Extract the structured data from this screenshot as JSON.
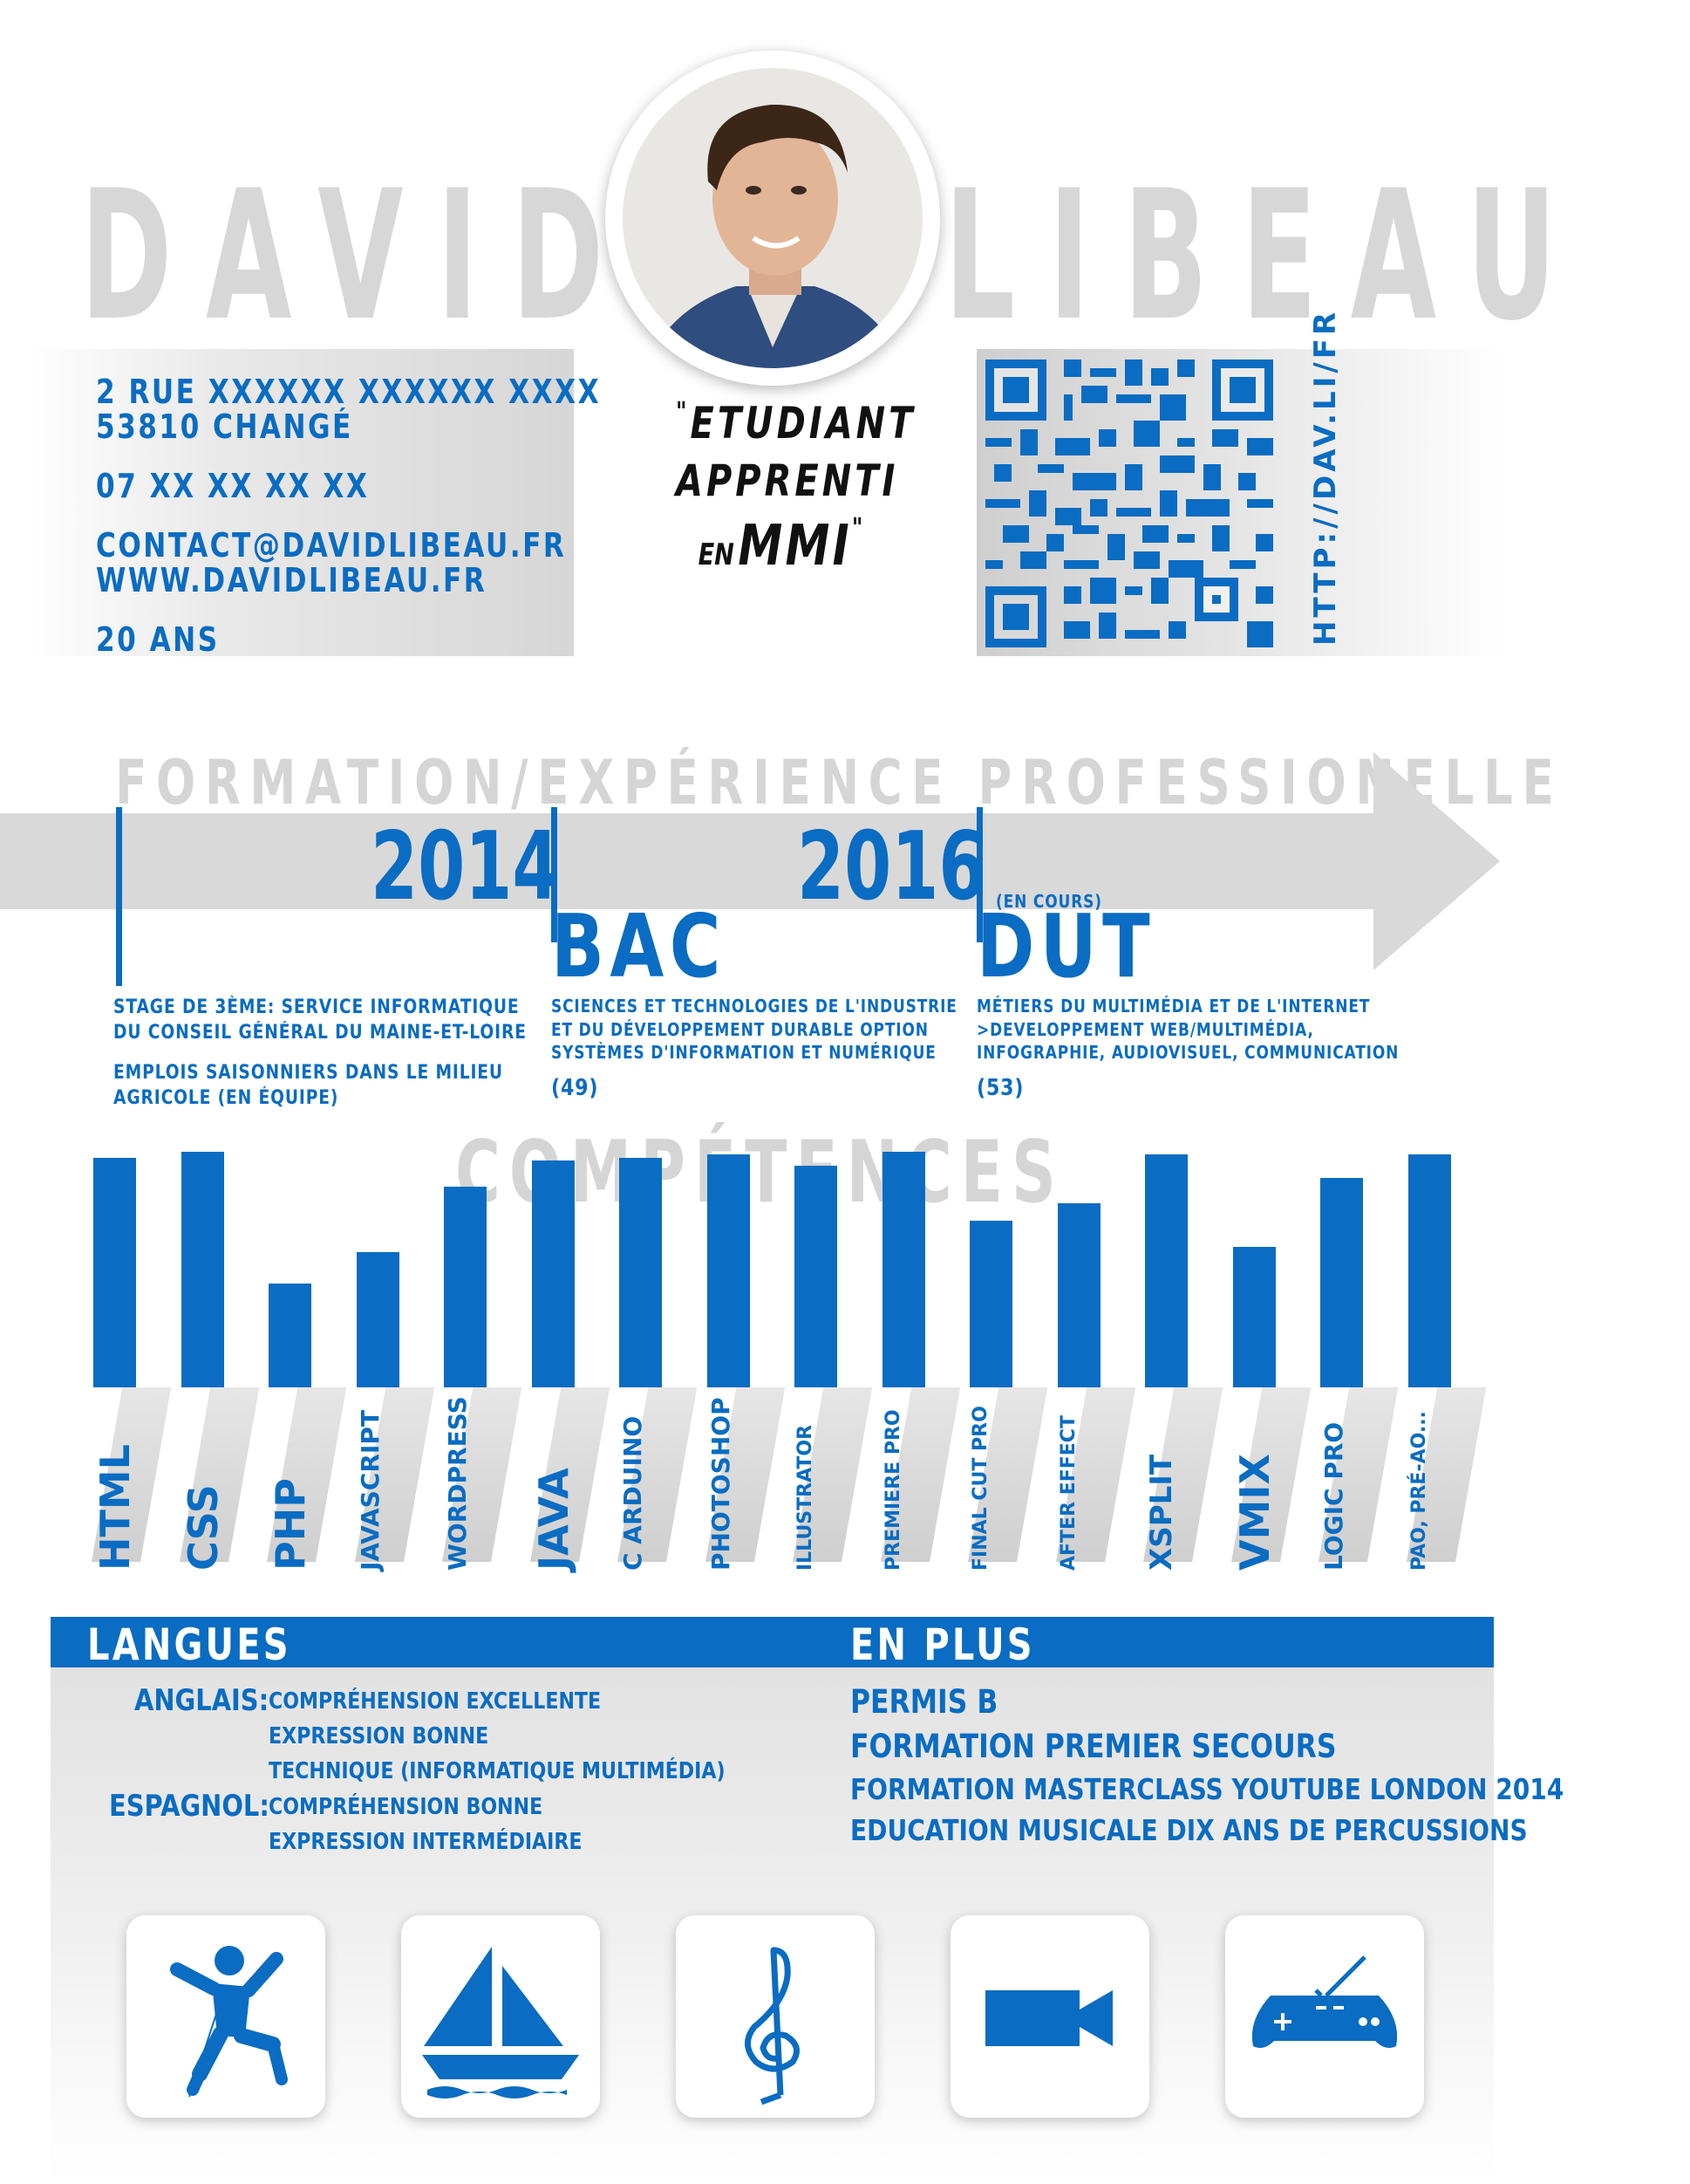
{
  "header": {
    "first_name": "DAVID",
    "last_name": "LIBEAU"
  },
  "contact": {
    "address_line1": "2 RUE XXXXXX XXXXXX XXXX",
    "address_line2": "53810 CHANGÉ",
    "phone": "07 XX XX XX XX",
    "email": "CONTACT@DAVIDLIBEAU.FR",
    "website": "WWW.DAVIDLIBEAU.FR",
    "age": "20 ANS"
  },
  "tagline": {
    "open_quote": "\"",
    "line1": "ETUDIANT",
    "line2": "APPRENTI",
    "line3_small": "EN",
    "line3_big": "MMI",
    "close_quote": "\""
  },
  "qr": {
    "url_label": "HTTP://DAV.LI/FR"
  },
  "timeline": {
    "title": "FORMATION/EXPÉRIENCE PROFESSIONELLE",
    "entries": [
      {
        "year": "",
        "degree": "",
        "status": "",
        "lines": [
          "STAGE DE 3ÈME: SERVICE INFORMATIQUE",
          "DU CONSEIL GÉNÉRAL DU MAINE-ET-LOIRE"
        ],
        "lines2": [
          "EMPLOIS SAISONNIERS DANS LE  MILIEU",
          "AGRICOLE (EN ÉQUIPE)"
        ],
        "location": ""
      },
      {
        "year": "2014",
        "degree": "BAC",
        "status": "",
        "lines": [
          "SCIENCES ET TECHNOLOGIES DE L'INDUSTRIE",
          "ET DU DÉVELOPPEMENT DURABLE OPTION",
          "SYSTÈMES D'INFORMATION ET NUMÉRIQUE"
        ],
        "lines2": [],
        "location": "(49)"
      },
      {
        "year": "2016",
        "degree": "DUT",
        "status": "(EN COURS)",
        "lines": [
          "MÉTIERS DU MULTIMÉDIA ET DE L'INTERNET",
          ">DEVELOPPEMENT WEB/MULTIMÉDIA,",
          "INFOGRAPHIE, AUDIOVISUEL, COMMUNICATION"
        ],
        "lines2": [],
        "location": "(53)"
      }
    ]
  },
  "skills": {
    "title": "COMPÉTENCES",
    "items": [
      {
        "label": "HTML",
        "level": 0.8
      },
      {
        "label": "CSS",
        "level": 0.82
      },
      {
        "label": "PHP",
        "level": 0.36
      },
      {
        "label": "JAVASCRIPT",
        "level": 0.47
      },
      {
        "label": "WORDPRESS",
        "level": 0.7
      },
      {
        "label": "JAVA",
        "level": 0.79
      },
      {
        "label": "C ARDUINO",
        "level": 0.8
      },
      {
        "label": "PHOTOSHOP",
        "level": 0.81
      },
      {
        "label": "ILLUSTRATOR",
        "level": 0.77
      },
      {
        "label": "PREMIERE PRO",
        "level": 0.82
      },
      {
        "label": "FINAL CUT PRO",
        "level": 0.58
      },
      {
        "label": "AFTER EFFECT",
        "level": 0.64
      },
      {
        "label": "XSPLIT",
        "level": 0.81
      },
      {
        "label": "VMIX",
        "level": 0.49
      },
      {
        "label": "LOGIC PRO",
        "level": 0.73
      },
      {
        "label": "PAO, PRÉ-AO...",
        "level": 0.81
      }
    ]
  },
  "languages": {
    "title": "LANGUES",
    "items": [
      {
        "name": "ANGLAIS:",
        "details": [
          "COMPRÉHENSION EXCELLENTE",
          "EXPRESSION BONNE",
          "TECHNIQUE (INFORMATIQUE MULTIMÉDIA)"
        ]
      },
      {
        "name": "ESPAGNOL:",
        "details": [
          "COMPRÉHENSION BONNE",
          "EXPRESSION INTERMÉDIAIRE"
        ]
      }
    ]
  },
  "extras": {
    "title": "EN PLUS",
    "items": [
      "PERMIS B",
      "FORMATION PREMIER SECOURS",
      "FORMATION MASTERCLASS YOUTUBE LONDON 2014",
      "EDUCATION MUSICALE DIX ANS DE PERCUSSIONS"
    ]
  },
  "hobbies": [
    "climbing-icon",
    "sailboat-icon",
    "treble-clef-icon",
    "video-camera-icon",
    "gamepad-icon"
  ],
  "colors": {
    "accent": "#0a6cc2",
    "grey": "#d7d7d7"
  }
}
